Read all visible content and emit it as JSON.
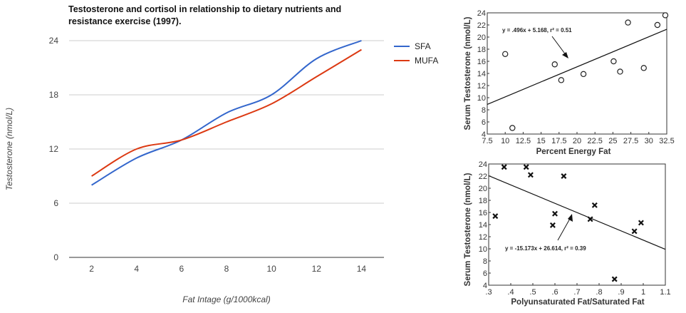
{
  "chart_data": [
    {
      "type": "line",
      "title_lines": [
        "Testosterone and cortisol in relationship to dietary nutrients and",
        "resistance exercise (1997)."
      ],
      "xlabel": "Fat Intage (g/1000kcal)",
      "ylabel": "Testosterone (nmol/L)",
      "x": [
        2,
        4,
        6,
        8,
        10,
        12,
        14
      ],
      "xticks": [
        "2",
        "4",
        "6",
        "8",
        "10",
        "12",
        "14"
      ],
      "yticks": [
        "0",
        "6",
        "12",
        "18",
        "24"
      ],
      "ylim": [
        0,
        24
      ],
      "xlim": [
        1,
        15
      ],
      "grid": true,
      "legend": "right",
      "series": [
        {
          "name": "SFA",
          "color": "#3366cc",
          "values": [
            8,
            11,
            13,
            16,
            18,
            22,
            24
          ]
        },
        {
          "name": "MUFA",
          "color": "#dc3912",
          "values": [
            9,
            12,
            13,
            15,
            17,
            20,
            23
          ]
        }
      ]
    },
    {
      "type": "scatter",
      "marker": "circle",
      "xlabel": "Percent Energy Fat",
      "ylabel": "Serum Testosterone  (nmol/L)",
      "xlim": [
        7.5,
        32.5
      ],
      "ylim": [
        4,
        24
      ],
      "xticks": [
        "7.5",
        "10",
        "12.5",
        "15",
        "17.5",
        "20",
        "22.5",
        "25",
        "27.5",
        "30",
        "32.5"
      ],
      "yticks": [
        "4",
        "6",
        "8",
        "10",
        "12",
        "14",
        "16",
        "18",
        "20",
        "22",
        "24"
      ],
      "equation": "y = .496x + 5.168, r² = 0.51",
      "trend": {
        "slope": 0.496,
        "intercept": 5.168
      },
      "points": [
        {
          "x": 10.0,
          "y": 17.2
        },
        {
          "x": 11.0,
          "y": 5.0
        },
        {
          "x": 16.9,
          "y": 15.5
        },
        {
          "x": 17.8,
          "y": 12.9
        },
        {
          "x": 20.9,
          "y": 13.9
        },
        {
          "x": 25.1,
          "y": 16.0
        },
        {
          "x": 26.0,
          "y": 14.3
        },
        {
          "x": 27.1,
          "y": 22.4
        },
        {
          "x": 29.3,
          "y": 14.9
        },
        {
          "x": 31.2,
          "y": 22.0
        },
        {
          "x": 32.3,
          "y": 23.6
        }
      ]
    },
    {
      "type": "scatter",
      "marker": "x",
      "xlabel": "Polyunsaturated Fat/Saturated Fat",
      "ylabel": "Serum Testosterone  (nmol/L)",
      "xlim": [
        0.3,
        1.1
      ],
      "ylim": [
        4,
        24
      ],
      "xticks": [
        ".3",
        ".4",
        ".5",
        ".6",
        ".7",
        ".8",
        ".9",
        "1",
        "1.1"
      ],
      "yticks": [
        "4",
        "6",
        "8",
        "10",
        "12",
        "14",
        "16",
        "18",
        "20",
        "22",
        "24"
      ],
      "equation": "y = -15.173x + 26.614, r² = 0.39",
      "trend": {
        "slope": -15.173,
        "intercept": 26.614
      },
      "points": [
        {
          "x": 0.33,
          "y": 15.4
        },
        {
          "x": 0.37,
          "y": 23.5
        },
        {
          "x": 0.47,
          "y": 23.5
        },
        {
          "x": 0.49,
          "y": 22.2
        },
        {
          "x": 0.59,
          "y": 13.9
        },
        {
          "x": 0.6,
          "y": 15.8
        },
        {
          "x": 0.64,
          "y": 22.0
        },
        {
          "x": 0.76,
          "y": 14.9
        },
        {
          "x": 0.78,
          "y": 17.2
        },
        {
          "x": 0.87,
          "y": 5.0
        },
        {
          "x": 0.96,
          "y": 12.9
        },
        {
          "x": 0.99,
          "y": 14.3
        }
      ]
    }
  ]
}
